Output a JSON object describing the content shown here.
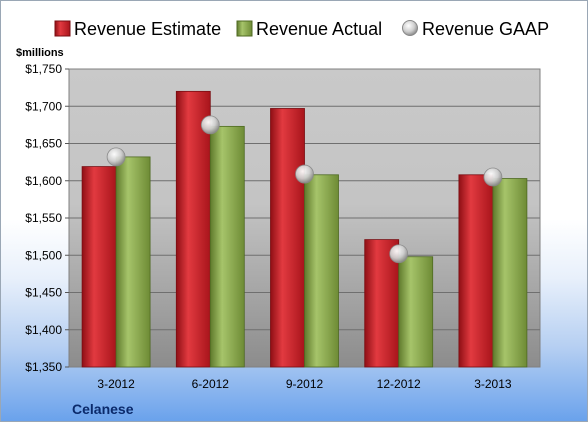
{
  "chart_data": {
    "type": "bar",
    "categories": [
      "3-2012",
      "6-2012",
      "9-2012",
      "12-2012",
      "3-2013"
    ],
    "series": [
      {
        "name": "Revenue Estimate",
        "values": [
          1619,
          1720,
          1697,
          1521,
          1608
        ],
        "color": "#cc1f26"
      },
      {
        "name": "Revenue Actual",
        "values": [
          1632,
          1673,
          1608,
          1498,
          1603
        ],
        "color": "#8aa94a"
      },
      {
        "name": "Revenue GAAP",
        "values": [
          1632,
          1675,
          1609,
          1502,
          1605
        ],
        "marker": "circle",
        "color": "#c8c8c8"
      }
    ],
    "ylabel": "$millions",
    "ylim": [
      1350,
      1750
    ],
    "yticks": [
      "$1,750",
      "$1,700",
      "$1,650",
      "$1,600",
      "$1,550",
      "$1,500",
      "$1,450",
      "$1,400",
      "$1,350"
    ],
    "yticks_values": [
      1750,
      1700,
      1650,
      1600,
      1550,
      1500,
      1450,
      1400,
      1350
    ],
    "grid": true,
    "legend": "top"
  },
  "footer": {
    "company": "Celanese"
  }
}
